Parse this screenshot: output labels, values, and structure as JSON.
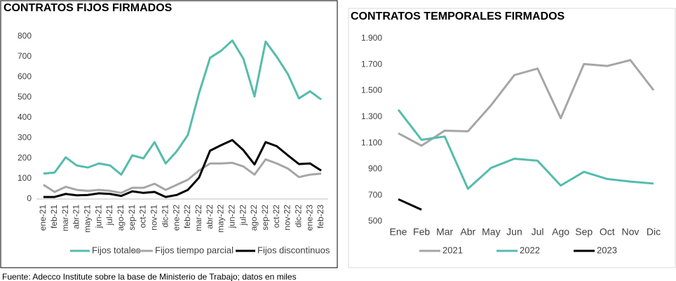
{
  "chart_data": [
    {
      "type": "line",
      "title": "CONTRATOS FIJOS FIRMADOS",
      "categories": [
        "ene-21",
        "feb-21",
        "mar-21",
        "abr-21",
        "may-21",
        "jun-21",
        "jul-21",
        "ago-21",
        "sep-21",
        "oct-21",
        "nov-21",
        "dic-21",
        "ene-22",
        "feb-22",
        "mar-22",
        "abr-22",
        "may-22",
        "jun-22",
        "jul-22",
        "ago-22",
        "sep-22",
        "oct-22",
        "nov-22",
        "dic-22",
        "ene-23",
        "feb-23"
      ],
      "series": [
        {
          "name": "Fijos totales",
          "color": "#55bcac",
          "values": [
            125,
            130,
            205,
            165,
            155,
            175,
            165,
            120,
            215,
            200,
            280,
            175,
            235,
            315,
            520,
            695,
            730,
            780,
            690,
            505,
            775,
            700,
            615,
            495,
            530,
            490
          ]
        },
        {
          "name": "Fijos tiempo parcial",
          "color": "#a6a6a6",
          "values": [
            70,
            35,
            60,
            45,
            40,
            45,
            40,
            30,
            55,
            55,
            75,
            45,
            70,
            95,
            140,
            175,
            175,
            178,
            160,
            120,
            195,
            175,
            150,
            108,
            120,
            125
          ]
        },
        {
          "name": "Fijos discontinuos",
          "color": "#000000",
          "values": [
            10,
            10,
            25,
            18,
            20,
            28,
            25,
            15,
            38,
            30,
            35,
            10,
            20,
            45,
            105,
            238,
            265,
            290,
            240,
            170,
            280,
            260,
            215,
            172,
            175,
            140
          ]
        }
      ],
      "ylim": [
        0,
        800
      ],
      "yticks": [
        0,
        100,
        200,
        300,
        400,
        500,
        600,
        700,
        800
      ],
      "legend": "bottom"
    },
    {
      "type": "line",
      "title": "CONTRATOS TEMPORALES FIRMADOS",
      "categories": [
        "Ene",
        "Feb",
        "Mar",
        "Abr",
        "May",
        "Jun",
        "Jul",
        "Ago",
        "Sep",
        "Oct",
        "Nov",
        "Dic"
      ],
      "series": [
        {
          "name": "2021",
          "color": "#a6a6a6",
          "values": [
            1175,
            1080,
            1195,
            1190,
            1390,
            1620,
            1670,
            1290,
            1705,
            1690,
            1735,
            1505
          ]
        },
        {
          "name": "2022",
          "color": "#55bcac",
          "values": [
            1355,
            1125,
            1150,
            750,
            910,
            980,
            965,
            775,
            880,
            825,
            805,
            790
          ]
        },
        {
          "name": "2023",
          "color": "#000000",
          "values": [
            670,
            590,
            null,
            null,
            null,
            null,
            null,
            null,
            null,
            null,
            null,
            null
          ]
        }
      ],
      "ylim": [
        500,
        1900
      ],
      "yticks": [
        500,
        700,
        900,
        {
          "value": 1100,
          "label": "1.100"
        },
        {
          "value": 1300,
          "label": "1.300"
        },
        {
          "value": 1500,
          "label": "1.500"
        },
        {
          "value": 1700,
          "label": "1.700"
        },
        {
          "value": 1900,
          "label": "1.900"
        }
      ],
      "legend": "bottom"
    }
  ],
  "source": "Fuente: Adecco Institute sobre la base de Ministerio de Trabajo; datos en miles"
}
